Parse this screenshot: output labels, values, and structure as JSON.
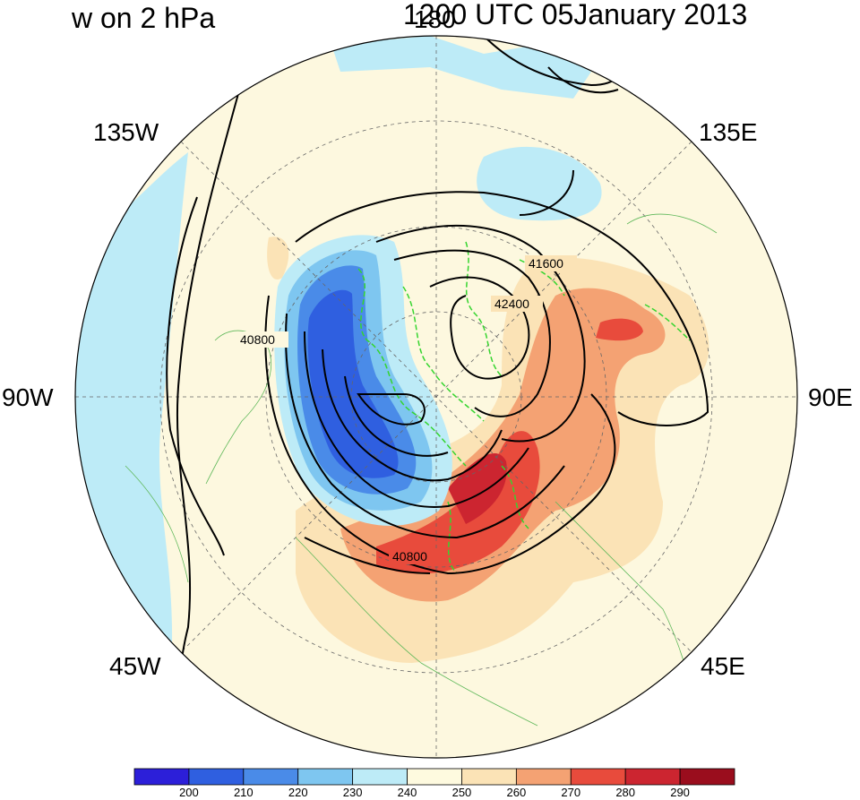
{
  "title_left": "w on 2 hPa",
  "title_right": "1200 UTC 05January 2013",
  "lon_labels": {
    "top": "180",
    "upper_left": "135W",
    "upper_right": "135E",
    "left": "90W",
    "right": "90E",
    "lower_left": "45W",
    "lower_right": "45E"
  },
  "contour_labels": [
    "41600",
    "42400",
    "40800",
    "40800"
  ],
  "colorbar": {
    "ticks": [
      "200",
      "210",
      "220",
      "230",
      "240",
      "250",
      "260",
      "270",
      "280",
      "290"
    ],
    "colors": [
      "#2c1fd9",
      "#2f5fe0",
      "#4a8be8",
      "#7ec6f0",
      "#bdebf7",
      "#fefadf",
      "#fbe3b6",
      "#f4a273",
      "#e84b3c",
      "#cc2530",
      "#9a0d1d"
    ]
  }
}
